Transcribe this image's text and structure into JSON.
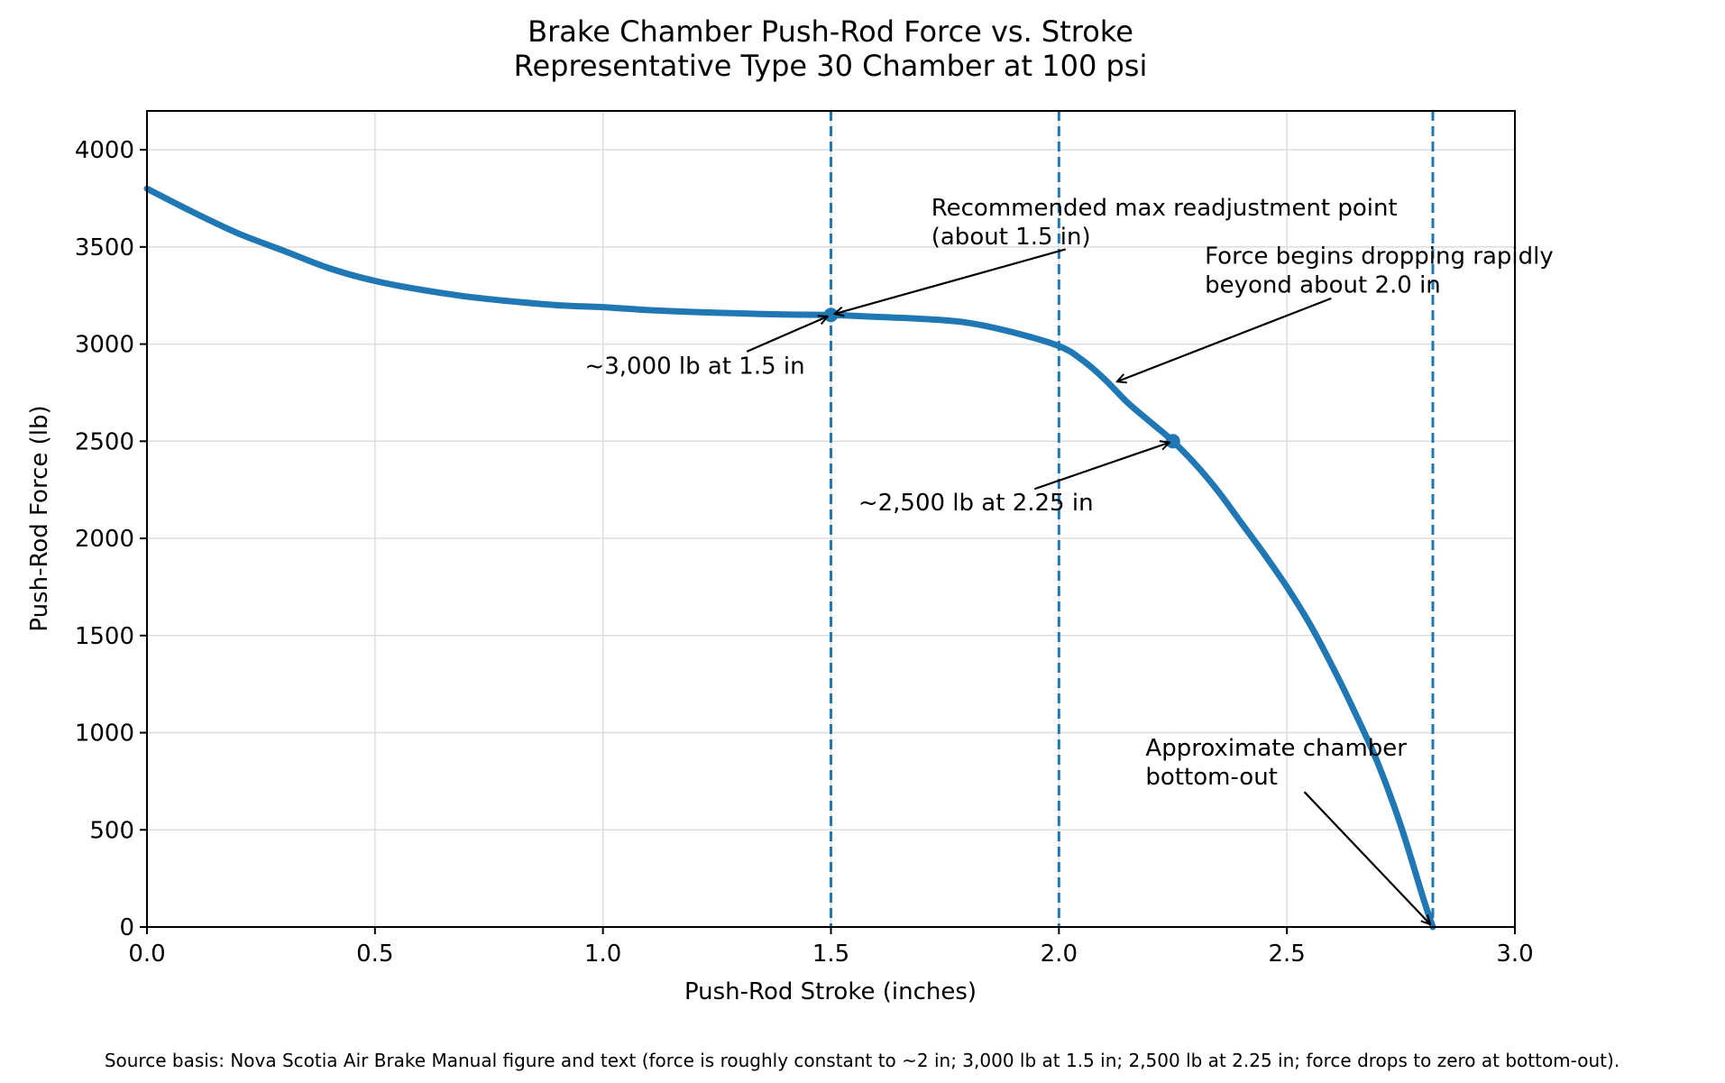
{
  "chart_data": {
    "type": "line",
    "title": "Brake Chamber Push-Rod Force vs. Stroke",
    "subtitle": "Representative Type 30 Chamber at 100 psi",
    "xlabel": "Push-Rod Stroke (inches)",
    "ylabel": "Push-Rod Force (lb)",
    "xlim": [
      0,
      3.0
    ],
    "ylim": [
      0,
      4200
    ],
    "xticks": [
      0.0,
      0.5,
      1.0,
      1.5,
      2.0,
      2.5,
      3.0
    ],
    "xtick_labels": [
      "0.0",
      "0.5",
      "1.0",
      "1.5",
      "2.0",
      "2.5",
      "3.0"
    ],
    "yticks": [
      0,
      500,
      1000,
      1500,
      2000,
      2500,
      3000,
      3500,
      4000
    ],
    "ytick_labels": [
      "0",
      "500",
      "1000",
      "1500",
      "2000",
      "2500",
      "3000",
      "3500",
      "4000"
    ],
    "grid": true,
    "line_color": "#1f77b4",
    "series": [
      {
        "x": [
          0.0,
          0.1,
          0.2,
          0.3,
          0.4,
          0.5,
          0.6,
          0.7,
          0.8,
          0.9,
          1.0,
          1.1,
          1.2,
          1.3,
          1.4,
          1.5,
          1.6,
          1.7,
          1.8,
          1.9,
          2.0,
          2.05,
          2.1,
          2.15,
          2.2,
          2.25,
          2.3,
          2.35,
          2.4,
          2.45,
          2.5,
          2.55,
          2.6,
          2.65,
          2.7,
          2.75,
          2.8,
          2.82
        ],
        "y": [
          3800,
          3680,
          3570,
          3480,
          3390,
          3325,
          3280,
          3245,
          3220,
          3200,
          3190,
          3175,
          3165,
          3158,
          3152,
          3150,
          3140,
          3130,
          3110,
          3060,
          2990,
          2920,
          2820,
          2700,
          2600,
          2500,
          2380,
          2240,
          2080,
          1920,
          1750,
          1560,
          1340,
          1100,
          840,
          520,
          140,
          0
        ]
      }
    ],
    "vertical_lines": [
      1.5,
      2.0,
      2.82
    ],
    "markers": [
      {
        "x": 1.5,
        "y": 3150
      },
      {
        "x": 2.25,
        "y": 2500
      }
    ],
    "annotations": [
      {
        "lines": [
          "Recommended max readjustment point",
          "(about 1.5 in)"
        ],
        "text_xy": [
          1.72,
          3630
        ],
        "target_xy": [
          1.5,
          3150
        ]
      },
      {
        "lines": [
          "Force begins dropping rapidly",
          "beyond about 2.0 in"
        ],
        "text_xy": [
          2.32,
          3380
        ],
        "target_xy": [
          2.12,
          2800
        ]
      },
      {
        "lines": [
          "~3,000 lb at 1.5 in"
        ],
        "text_xy": [
          0.96,
          2890
        ],
        "target_xy": [
          1.5,
          3150
        ]
      },
      {
        "lines": [
          "~2,500 lb at 2.25 in"
        ],
        "text_xy": [
          1.56,
          2185
        ],
        "target_xy": [
          2.25,
          2500
        ]
      },
      {
        "lines": [
          "Approximate chamber",
          "bottom-out"
        ],
        "text_xy": [
          2.19,
          850
        ],
        "target_xy": [
          2.82,
          0
        ]
      }
    ],
    "footnote": "Source basis: Nova Scotia Air Brake Manual figure and text (force is roughly constant to ~2 in; 3,000 lb at 1.5 in; 2,500 lb at 2.25 in; force drops to zero at bottom-out)."
  }
}
